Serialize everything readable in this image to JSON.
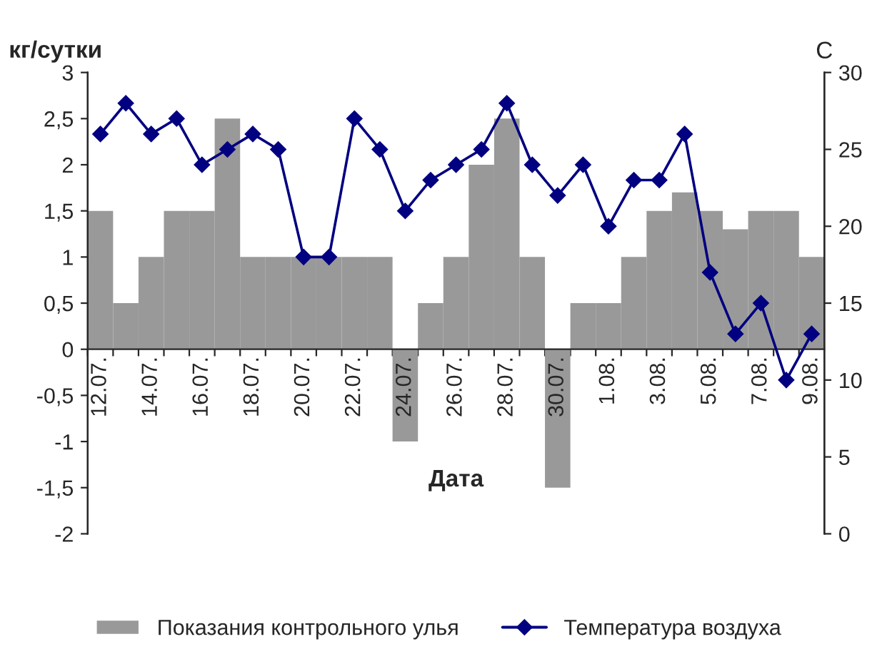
{
  "chart_data": {
    "type": "bar",
    "xlabel": "Дата",
    "ylabel": "кг/сутки",
    "y2label": "С",
    "categories": [
      "12.07.",
      null,
      "14.07.",
      null,
      "16.07.",
      null,
      "18.07.",
      null,
      "20.07.",
      null,
      "22.07.",
      null,
      "24.07.",
      null,
      "26.07.",
      null,
      "28.07.",
      null,
      "30.07.",
      null,
      "1.08.",
      null,
      "3.08.",
      null,
      "5.08.",
      null,
      "7.08.",
      null,
      "9.08."
    ],
    "series": [
      {
        "name": "Показания контрольного улья",
        "color": "#999999",
        "values": [
          1.5,
          0.5,
          1,
          1.5,
          1.5,
          2.5,
          1,
          1,
          1,
          1,
          1,
          1,
          -1,
          0.5,
          1,
          2,
          2.5,
          1,
          -1.5,
          0.5,
          0.5,
          1,
          1.5,
          1.7,
          1.5,
          1.3,
          1.5,
          1.5,
          1
        ]
      },
      {
        "name": "Температура воздуха",
        "type": "line",
        "axis": "y2",
        "color": "#000080",
        "marker": "diamond",
        "values": [
          26,
          28,
          26,
          27,
          24,
          25,
          26,
          25,
          18,
          18,
          27,
          25,
          21,
          23,
          24,
          25,
          28,
          24,
          22,
          24,
          20,
          23,
          23,
          26,
          17,
          13,
          15,
          10,
          13
        ]
      }
    ],
    "ylim": [
      -2,
      3
    ],
    "yticks": [
      {
        "value": -2,
        "label": "-2"
      },
      {
        "value": -1.5,
        "label": "-1,5"
      },
      {
        "value": -1,
        "label": "-1"
      },
      {
        "value": -0.5,
        "label": "-0,5"
      },
      {
        "value": 0,
        "label": "0"
      },
      {
        "value": 0.5,
        "label": "0,5"
      },
      {
        "value": 1,
        "label": "1"
      },
      {
        "value": 1.5,
        "label": "1,5"
      },
      {
        "value": 2,
        "label": "2"
      },
      {
        "value": 2.5,
        "label": "2,5"
      },
      {
        "value": 3,
        "label": "3"
      }
    ],
    "y2lim": [
      0,
      30
    ],
    "y2ticks": [
      0,
      5,
      10,
      15,
      20,
      25,
      30
    ],
    "grid": false,
    "legend": "bottom"
  }
}
